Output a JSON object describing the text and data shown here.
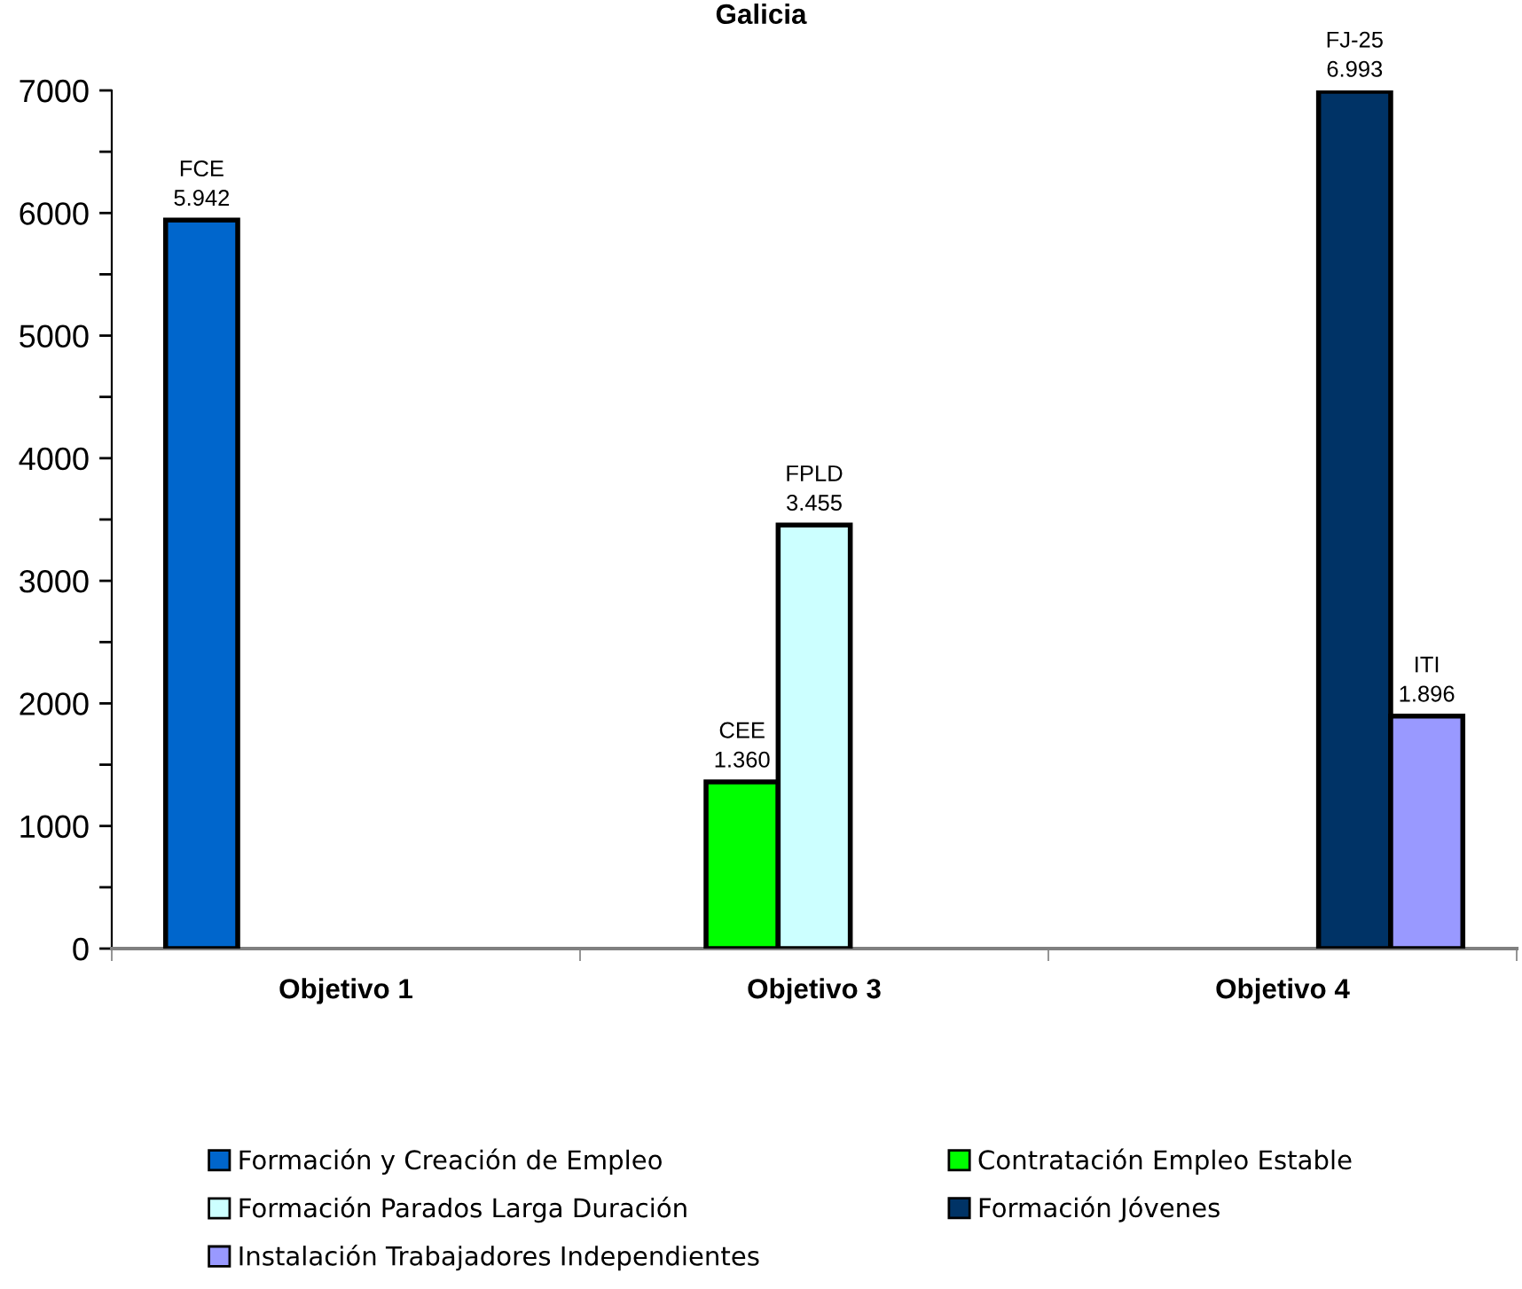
{
  "chart_data": {
    "type": "bar",
    "title": "Galicia",
    "categories": [
      "Objetivo 1",
      "Objetivo 3",
      "Objetivo 4"
    ],
    "series": [
      {
        "name": "Formación y Creación de Empleo",
        "color": "#0066cc",
        "values": [
          5942,
          null,
          null
        ],
        "value_labels": [
          "FCE\n5.942",
          null,
          null
        ]
      },
      {
        "name": "Contratación Empleo Estable",
        "color": "#00ff00",
        "values": [
          null,
          1360,
          null
        ],
        "value_labels": [
          null,
          "CEE\n1.360",
          null
        ]
      },
      {
        "name": "Formación Parados Larga Duración",
        "color": "#ccffff",
        "values": [
          null,
          3455,
          null
        ],
        "value_labels": [
          null,
          "FPLD\n3.455",
          null
        ]
      },
      {
        "name": "Formación Jóvenes",
        "color": "#003366",
        "values": [
          null,
          null,
          6993
        ],
        "value_labels": [
          null,
          null,
          "FJ-25\n6.993"
        ]
      },
      {
        "name": "Instalación Trabajadores Independientes",
        "color": "#9999ff",
        "values": [
          null,
          null,
          1896
        ],
        "value_labels": [
          null,
          null,
          "ITI\n1.896"
        ]
      }
    ],
    "ylim": [
      0,
      7000
    ],
    "yticks": [
      0,
      {
        "value": 500,
        "label": null
      },
      1000,
      {
        "value": 1500,
        "label": null
      },
      2000,
      {
        "value": 2500,
        "label": null
      },
      3000,
      {
        "value": 3500,
        "label": null
      },
      4000,
      {
        "value": 4500,
        "label": null
      },
      5000,
      {
        "value": 5500,
        "label": null
      },
      6000,
      {
        "value": 6500,
        "label": null
      },
      7000
    ],
    "legend": "bottom"
  }
}
